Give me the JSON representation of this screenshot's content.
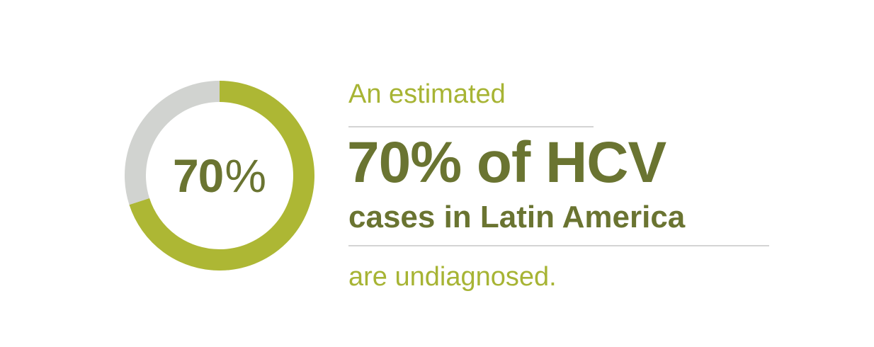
{
  "chart_data": {
    "type": "pie",
    "categories": [
      "undiagnosed",
      "remainder"
    ],
    "values": [
      70,
      30
    ],
    "center_label": {
      "number": "70",
      "unit": "%"
    },
    "colors": {
      "primary": "#adb734",
      "track": "#d1d3d0"
    }
  },
  "text": {
    "lead": "An estimated",
    "headline": "70% of HCV",
    "subhead": "cases in Latin America",
    "tail": "are undiagnosed."
  },
  "colors": {
    "dark_olive": "#6a7431",
    "light_olive": "#a7b434",
    "divider": "#d4d4d4"
  }
}
